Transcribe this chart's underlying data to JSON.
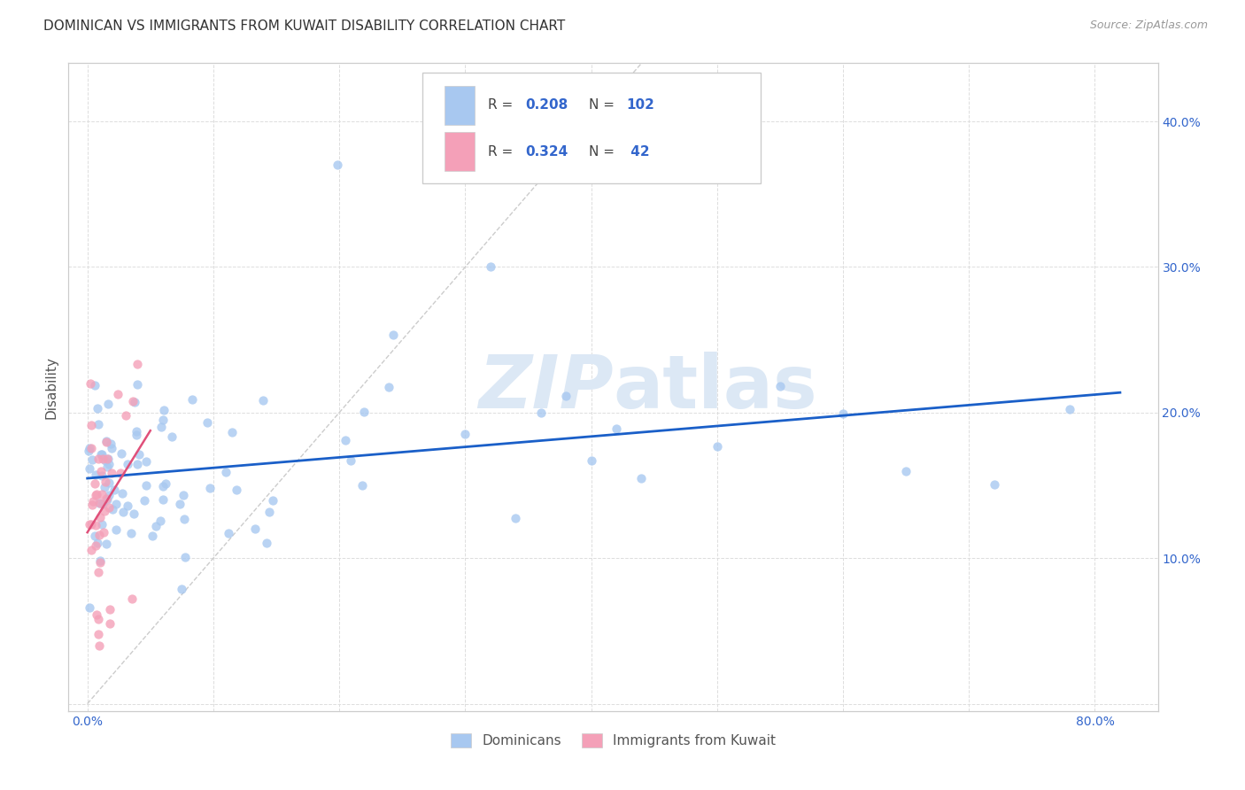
{
  "title": "DOMINICAN VS IMMIGRANTS FROM KUWAIT DISABILITY CORRELATION CHART",
  "source": "Source: ZipAtlas.com",
  "ylabel_label": "Disability",
  "x_tick_labels": [
    "0.0%",
    "",
    "",
    "",
    "",
    "",
    "",
    "",
    "80.0%"
  ],
  "y_tick_labels_right": [
    "",
    "10.0%",
    "20.0%",
    "30.0%",
    "40.0%"
  ],
  "xlim": [
    -0.015,
    0.85
  ],
  "ylim": [
    -0.005,
    0.44
  ],
  "dominicans_R": 0.208,
  "dominicans_N": 102,
  "kuwait_R": 0.324,
  "kuwait_N": 42,
  "dominican_color": "#a8c8f0",
  "kuwait_color": "#f4a0b8",
  "trendline_dominican_color": "#1a5fc8",
  "trendline_kuwait_color": "#e0507a",
  "diagonal_color": "#cccccc",
  "background_color": "#ffffff",
  "grid_color": "#dddddd",
  "watermark_color": "#dce8f5",
  "title_fontsize": 11,
  "tick_fontsize": 10,
  "legend_text_color": "#3366cc"
}
